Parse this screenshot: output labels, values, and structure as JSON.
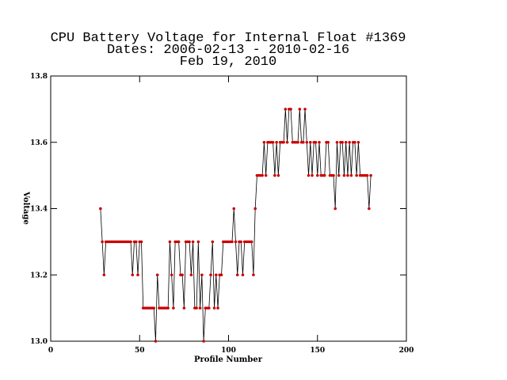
{
  "chart_data": {
    "type": "line",
    "title": "CPU Battery Voltage for Internal Float #1369",
    "subtitle": [
      "Dates:  2006-02-13 -  2010-02-16",
      "Feb 19, 2010"
    ],
    "xlabel": "Profile Number",
    "ylabel": "Voltage",
    "xlim": [
      0,
      200
    ],
    "xticks": [
      0,
      50,
      100,
      150,
      200
    ],
    "ylim": [
      13,
      13.8
    ],
    "yticks": [
      {
        "value": 13,
        "label": "13.0"
      },
      13.2,
      13.4,
      13.6,
      13.8
    ],
    "series": [
      {
        "color": "#000000",
        "marker_color": "#cc0000",
        "x": [
          28,
          29,
          30,
          31,
          32,
          33,
          34,
          35,
          36,
          37,
          38,
          39,
          40,
          41,
          42,
          43,
          44,
          45,
          46,
          47,
          48,
          49,
          50,
          51,
          52,
          53,
          54,
          55,
          56,
          57,
          58,
          59,
          60,
          61,
          62,
          63,
          64,
          65,
          66,
          67,
          68,
          69,
          70,
          71,
          72,
          73,
          74,
          75,
          76,
          77,
          78,
          79,
          80,
          81,
          82,
          83,
          84,
          85,
          86,
          87,
          88,
          89,
          90,
          91,
          92,
          93,
          94,
          95,
          96,
          97,
          98,
          99,
          100,
          101,
          102,
          103,
          104,
          105,
          106,
          107,
          108,
          109,
          110,
          111,
          112,
          113,
          114,
          115,
          116,
          117,
          118,
          119,
          120,
          121,
          122,
          123,
          124,
          125,
          126,
          127,
          128,
          129,
          130,
          131,
          132,
          133,
          134,
          135,
          136,
          137,
          138,
          139,
          140,
          141,
          142,
          143,
          144,
          145,
          146,
          147,
          148,
          149,
          150,
          151,
          152,
          153,
          154,
          155,
          156,
          157,
          158,
          159,
          160,
          161,
          162,
          163,
          164,
          165,
          166,
          167,
          168,
          169,
          170,
          171,
          172,
          173,
          174,
          175,
          176,
          177,
          178,
          179,
          180
        ],
        "values": [
          13.4,
          13.3,
          13.2,
          13.3,
          13.3,
          13.3,
          13.3,
          13.3,
          13.3,
          13.3,
          13.3,
          13.3,
          13.3,
          13.3,
          13.3,
          13.3,
          13.3,
          13.3,
          13.2,
          13.3,
          13.3,
          13.2,
          13.3,
          13.3,
          13.1,
          13.1,
          13.1,
          13.1,
          13.1,
          13.1,
          13.1,
          13.0,
          13.2,
          13.1,
          13.1,
          13.1,
          13.1,
          13.1,
          13.1,
          13.3,
          13.2,
          13.1,
          13.3,
          13.3,
          13.3,
          13.2,
          13.2,
          13.1,
          13.3,
          13.3,
          13.3,
          13.2,
          13.3,
          13.1,
          13.1,
          13.3,
          13.1,
          13.2,
          13.0,
          13.1,
          13.1,
          13.1,
          13.2,
          13.3,
          13.1,
          13.2,
          13.1,
          13.2,
          13.2,
          13.3,
          13.3,
          13.3,
          13.3,
          13.3,
          13.3,
          13.4,
          13.3,
          13.2,
          13.3,
          13.3,
          13.2,
          13.3,
          13.3,
          13.3,
          13.3,
          13.3,
          13.2,
          13.4,
          13.5,
          13.5,
          13.5,
          13.5,
          13.6,
          13.5,
          13.6,
          13.6,
          13.6,
          13.6,
          13.5,
          13.6,
          13.5,
          13.6,
          13.6,
          13.6,
          13.7,
          13.6,
          13.7,
          13.7,
          13.6,
          13.6,
          13.6,
          13.6,
          13.7,
          13.6,
          13.6,
          13.7,
          13.6,
          13.5,
          13.6,
          13.5,
          13.6,
          13.6,
          13.5,
          13.6,
          13.5,
          13.5,
          13.5,
          13.6,
          13.6,
          13.5,
          13.5,
          13.5,
          13.4,
          13.6,
          13.5,
          13.6,
          13.6,
          13.5,
          13.6,
          13.5,
          13.6,
          13.5,
          13.6,
          13.6,
          13.5,
          13.6,
          13.5,
          13.5,
          13.5,
          13.5,
          13.5,
          13.4,
          13.5
        ]
      }
    ]
  }
}
